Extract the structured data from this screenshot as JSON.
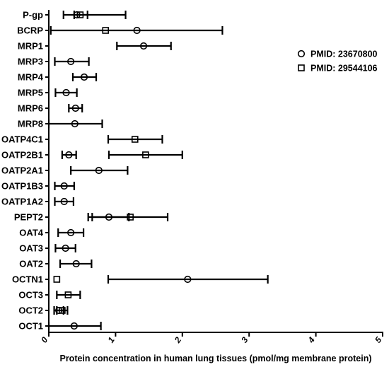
{
  "chart_data": {
    "type": "scatter",
    "title": "",
    "xlabel": "Protein concentration in human lung tissues (pmol/mg membrane protein)",
    "ylabel": "",
    "xlim": [
      0,
      5
    ],
    "xticks": [
      "0",
      "1",
      "2",
      "3",
      "4",
      "5"
    ],
    "categories": [
      "P-gp",
      "BCRP",
      "MRP1",
      "MRP3",
      "MRP4",
      "MRP5",
      "MRP6",
      "MRP8",
      "OATP4C1",
      "OATP2B1",
      "OATP2A1",
      "OATP1B3",
      "OATP1A2",
      "PEPT2",
      "OAT4",
      "OAT3",
      "OAT2",
      "OCTN1",
      "OCT3",
      "OCT2",
      "OCT1"
    ],
    "legend_position": "right",
    "series": [
      {
        "name": "PMID: 23670800",
        "marker": "circle",
        "points": [
          {
            "category": "P-gp",
            "mean": 0.42,
            "low": 0.22,
            "high": 1.15
          },
          {
            "category": "BCRP",
            "mean": 1.32,
            "low": 0.03,
            "high": 2.6
          },
          {
            "category": "MRP1",
            "mean": 1.42,
            "low": 1.02,
            "high": 1.83
          },
          {
            "category": "MRP3",
            "mean": 0.33,
            "low": 0.09,
            "high": 0.6
          },
          {
            "category": "MRP4",
            "mean": 0.53,
            "low": 0.36,
            "high": 0.71
          },
          {
            "category": "MRP5",
            "mean": 0.26,
            "low": 0.1,
            "high": 0.42
          },
          {
            "category": "MRP6",
            "mean": 0.4,
            "low": 0.3,
            "high": 0.5
          },
          {
            "category": "MRP8",
            "mean": 0.39,
            "low": 0.0,
            "high": 0.8
          },
          {
            "category": "OATP2B1",
            "mean": 0.3,
            "low": 0.2,
            "high": 0.41
          },
          {
            "category": "OATP2A1",
            "mean": 0.75,
            "low": 0.33,
            "high": 1.18
          },
          {
            "category": "OATP1B3",
            "mean": 0.23,
            "low": 0.09,
            "high": 0.38
          },
          {
            "category": "OATP1A2",
            "mean": 0.23,
            "low": 0.09,
            "high": 0.37
          },
          {
            "category": "PEPT2",
            "mean": 0.9,
            "low": 0.59,
            "high": 1.2
          },
          {
            "category": "OAT4",
            "mean": 0.33,
            "low": 0.14,
            "high": 0.52
          },
          {
            "category": "OAT3",
            "mean": 0.25,
            "low": 0.1,
            "high": 0.4
          },
          {
            "category": "OAT2",
            "mean": 0.41,
            "low": 0.17,
            "high": 0.64
          },
          {
            "category": "OCTN1",
            "mean": 2.08,
            "low": 0.89,
            "high": 3.28
          },
          {
            "category": "OCT2",
            "mean": 0.15,
            "low": 0.08,
            "high": 0.22
          },
          {
            "category": "OCT1",
            "mean": 0.38,
            "low": 0.0,
            "high": 0.78
          }
        ]
      },
      {
        "name": "PMID: 29544106",
        "marker": "square",
        "points": [
          {
            "category": "P-gp",
            "mean": 0.47,
            "low": 0.38,
            "high": 0.58
          },
          {
            "category": "BCRP",
            "mean": 0.85,
            "low": null,
            "high": null
          },
          {
            "category": "OATP4C1",
            "mean": 1.29,
            "low": 0.89,
            "high": 1.7
          },
          {
            "category": "OATP2B1",
            "mean": 1.45,
            "low": 0.9,
            "high": 2.0
          },
          {
            "category": "PEPT2",
            "mean": 1.22,
            "low": 0.65,
            "high": 1.78
          },
          {
            "category": "OCTN1",
            "mean": 0.12,
            "low": null,
            "high": null
          },
          {
            "category": "OCT3",
            "mean": 0.29,
            "low": 0.12,
            "high": 0.47
          },
          {
            "category": "OCT2",
            "mean": 0.2,
            "low": 0.12,
            "high": 0.28
          }
        ]
      }
    ]
  }
}
